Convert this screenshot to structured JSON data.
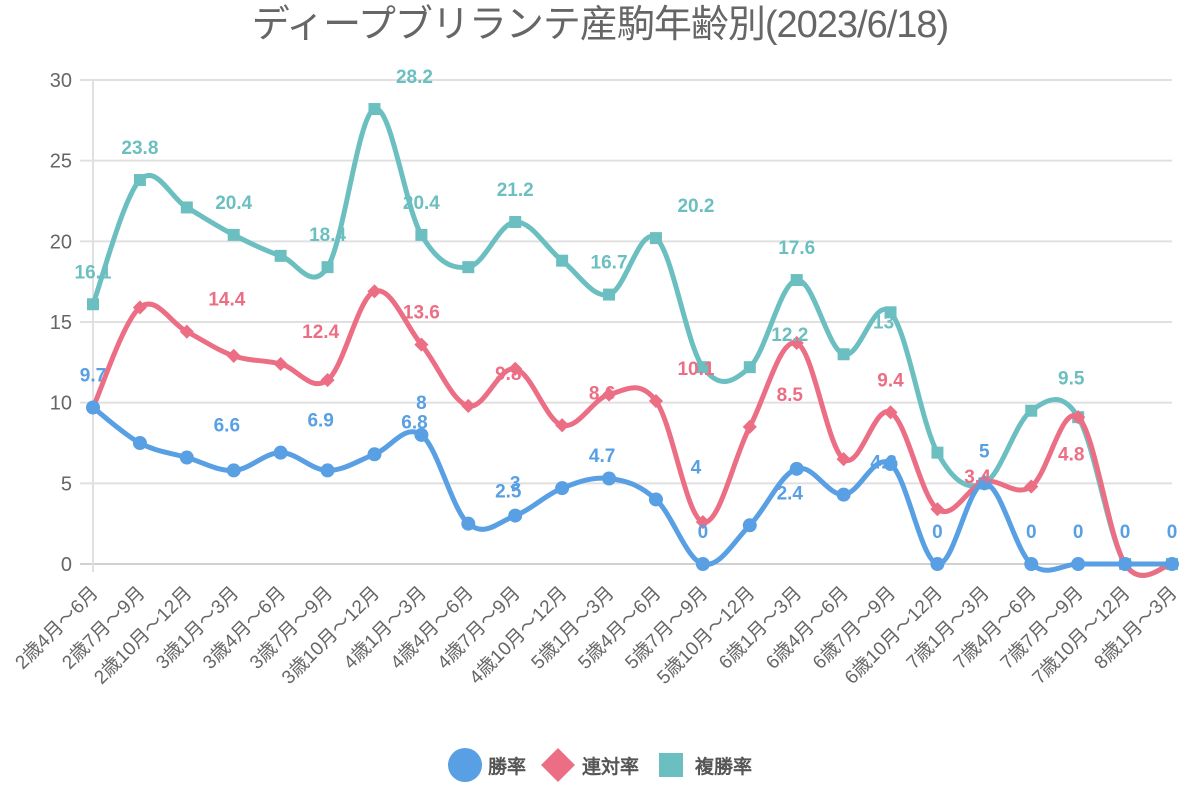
{
  "chart_data": {
    "type": "line",
    "title": "ディープブリランテ産駒年齢別(2023/6/18)",
    "xlabel": "",
    "ylabel": "",
    "ylim": [
      0,
      30
    ],
    "yticks": [
      0,
      5,
      10,
      15,
      20,
      25,
      30
    ],
    "grid": true,
    "legend_position": "bottom",
    "categories": [
      "2歳4月～6月",
      "2歳7月～9月",
      "2歳10月～12月",
      "3歳1月～3月",
      "3歳4月～6月",
      "3歳7月～9月",
      "3歳10月～12月",
      "4歳1月～3月",
      "4歳4月～6月",
      "4歳7月～9月",
      "4歳10月～12月",
      "5歳1月～3月",
      "5歳4月～6月",
      "5歳7月～9月",
      "5歳10月～12月",
      "6歳1月～3月",
      "6歳4月～6月",
      "6歳7月～9月",
      "6歳10月～12月",
      "7歳1月～3月",
      "7歳4月～6月",
      "7歳7月～9月",
      "7歳10月～12月",
      "8歳1月～3月"
    ],
    "series": [
      {
        "name": "勝率",
        "color": "#589fe3",
        "marker": "circle",
        "values": [
          9.7,
          7.5,
          6.6,
          5.8,
          6.9,
          5.8,
          6.8,
          8,
          2.5,
          3,
          4.7,
          5.3,
          4,
          0,
          2.4,
          5.9,
          4.3,
          6.2,
          0,
          5,
          0,
          0,
          0,
          0
        ],
        "labels": [
          "9.7",
          "",
          "6.6",
          "",
          "6.9",
          "",
          "6.8",
          "8",
          "2.5",
          "3",
          "4.7",
          "",
          "4",
          "0",
          "2.4",
          "",
          "4.3",
          "",
          "0",
          "5",
          "0",
          "0",
          "0",
          "0"
        ]
      },
      {
        "name": "連対率",
        "color": "#ec6e85",
        "marker": "diamond",
        "values": [
          9.7,
          15.9,
          14.4,
          12.9,
          12.4,
          11.4,
          16.9,
          13.6,
          9.8,
          12.1,
          8.6,
          10.5,
          10.1,
          2.6,
          8.5,
          13.7,
          6.5,
          9.4,
          3.4,
          5.1,
          4.8,
          9.1,
          0,
          0
        ],
        "labels": [
          "",
          "",
          "14.4",
          "",
          "12.4",
          "",
          "",
          "13.6",
          "9.8",
          "",
          "8.6",
          "",
          "10.1",
          "",
          "8.5",
          "",
          "",
          "9.4",
          "3.4",
          "",
          "4.8",
          "",
          "",
          ""
        ]
      },
      {
        "name": "複勝率",
        "color": "#6cbfc0",
        "marker": "square",
        "values": [
          16.1,
          23.8,
          22.1,
          20.4,
          19.1,
          18.4,
          28.2,
          20.4,
          18.4,
          21.2,
          18.8,
          16.7,
          20.2,
          12.2,
          12.2,
          17.6,
          13,
          15.6,
          6.9,
          5,
          9.5,
          9.1,
          0,
          0
        ],
        "labels": [
          "16.1",
          "23.8",
          "",
          "20.4",
          "",
          "18.4",
          "28.2",
          "20.4",
          "",
          "21.2",
          "",
          "16.7",
          "20.2",
          "",
          "12.2",
          "17.6",
          "13",
          "",
          "",
          "",
          "9.5",
          "",
          "",
          ""
        ]
      }
    ]
  },
  "legend": {
    "items": [
      {
        "label": "勝率"
      },
      {
        "label": "連対率"
      },
      {
        "label": "複勝率"
      }
    ]
  }
}
